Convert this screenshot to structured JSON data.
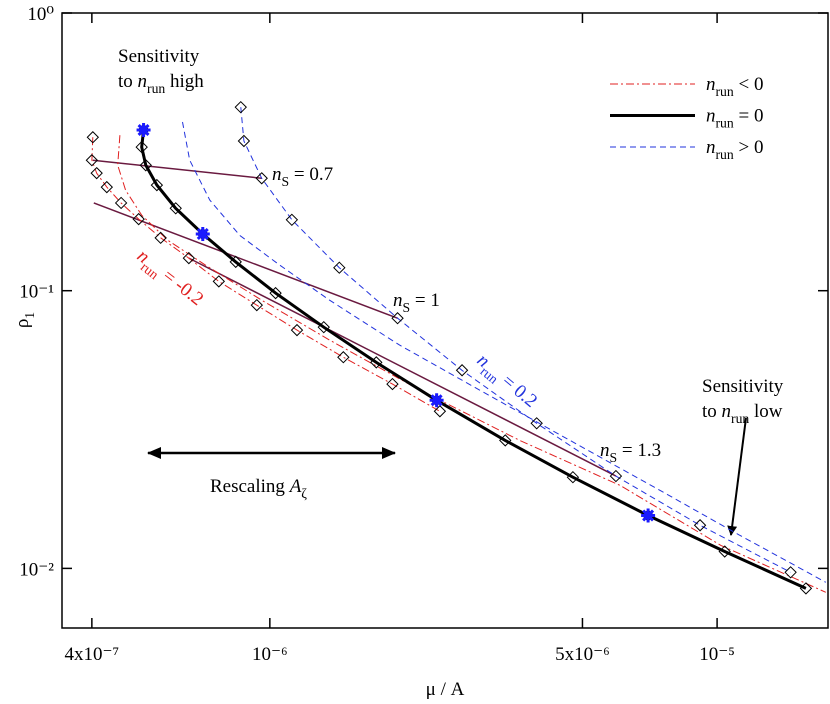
{
  "chart_data": {
    "type": "line",
    "xlabel": "μ / A",
    "ylabel": "ρ1",
    "log_x": true,
    "log_y": true,
    "xlim": [
      3.43e-07,
      1.77e-05
    ],
    "ylim": [
      0.0061,
      1
    ],
    "xticks": [
      {
        "value": 4e-07,
        "label": "4x10⁻⁷"
      },
      {
        "value": 1e-06,
        "label": "10⁻⁶"
      },
      {
        "value": 5e-06,
        "label": "5x10⁻⁶"
      },
      {
        "value": 1e-05,
        "label": "10⁻⁵"
      }
    ],
    "yticks": [
      {
        "value": 1,
        "label": "10⁰"
      },
      {
        "value": 0.1,
        "label": "10⁻¹"
      },
      {
        "value": 0.01,
        "label": "10⁻²"
      }
    ],
    "series": [
      {
        "name": "nrun < 0",
        "color": "#e02020",
        "dash": "dashdot",
        "width": 1,
        "lines": [
          {
            "markers": false,
            "x": [
              4.62e-07,
              4.57e-07,
              4.76e-07,
              5.17e-07,
              5.91e-07,
              7.16e-07,
              9.59e-07,
              1.36e-06,
              2.17e-06,
              3.62e-06,
              6.07e-06,
              1.02e-05,
              1.75e-05
            ],
            "values": [
              0.363,
              0.283,
              0.23,
              0.187,
              0.152,
              0.124,
              0.0924,
              0.0664,
              0.0438,
              0.0289,
              0.0199,
              0.0121,
              0.0082
            ]
          },
          {
            "markers": true,
            "x": [
              4.02e-07,
              4e-07,
              4.1e-07,
              4.32e-07,
              4.65e-07,
              5.09e-07,
              5.7e-07,
              6.59e-07,
              7.69e-07,
              9.35e-07,
              1.15e-06,
              1.46e-06,
              1.88e-06,
              2.4e-06
            ],
            "values": [
              0.357,
              0.295,
              0.265,
              0.236,
              0.207,
              0.181,
              0.155,
              0.131,
              0.108,
              0.0887,
              0.0721,
              0.0576,
              0.0461,
              0.0368
            ]
          }
        ]
      },
      {
        "name": "nrun = 0",
        "color": "#000000",
        "dash": "solid",
        "width": 3,
        "lines": [
          {
            "markers": true,
            "x": [
              5.22e-07,
              5.17e-07,
              5.28e-07,
              5.59e-07,
              6.16e-07,
              7.08e-07,
              8.39e-07,
              1.03e-06,
              1.32e-06,
              1.73e-06,
              2.36e-06,
              3.36e-06,
              4.76e-06,
              7.01e-06,
              1.04e-05,
              1.58e-05
            ],
            "values": [
              0.379,
              0.329,
              0.283,
              0.24,
              0.198,
              0.16,
              0.127,
              0.098,
              0.0739,
              0.0552,
              0.0403,
              0.0289,
              0.0213,
              0.0155,
              0.0115,
              0.00847
            ]
          }
        ]
      },
      {
        "name": "nrun > 0",
        "color": "#2233dd",
        "dash": "dashed",
        "width": 1,
        "lines": [
          {
            "markers": false,
            "x": [
              6.38e-07,
              6.62e-07,
              7.34e-07,
              8.57e-07,
              1.05e-06,
              1.36e-06,
              1.95e-06,
              2.95e-06,
              4.69e-06,
              7.45e-06,
              1.12e-05,
              1.75e-05
            ],
            "values": [
              0.405,
              0.295,
              0.212,
              0.158,
              0.124,
              0.0924,
              0.0637,
              0.0438,
              0.0289,
              0.0191,
              0.0132,
              0.00891
            ]
          },
          {
            "markers": true,
            "x": [
              8.61e-07,
              8.75e-07,
              9.59e-07,
              1.12e-06,
              1.43e-06,
              1.93e-06,
              2.69e-06,
              3.95e-06,
              5.94e-06,
              9.16e-06,
              1.46e-05
            ],
            "values": [
              0.458,
              0.346,
              0.254,
              0.18,
              0.121,
              0.0796,
              0.0517,
              0.0333,
              0.0215,
              0.0143,
              0.00968
            ]
          }
        ]
      }
    ],
    "stars": {
      "color": "#1a1aff",
      "x": [
        5.22e-07,
        7.08e-07,
        2.36e-06,
        7.01e-06
      ],
      "values": [
        0.379,
        0.16,
        0.0403,
        0.0155
      ]
    },
    "connectors": {
      "color": "#6a1a40",
      "lines": [
        {
          "x": [
            4.02e-07,
            9.59e-07
          ],
          "values": [
            0.295,
            0.254
          ]
        },
        {
          "x": [
            4.04e-07,
            1.93e-06
          ],
          "values": [
            0.207,
            0.0796
          ]
        },
        {
          "x": [
            6.59e-07,
            5.94e-06
          ],
          "values": [
            0.131,
            0.0215
          ]
        }
      ]
    },
    "annotations": [
      "Sensitivity",
      "to nrun high",
      "nS = 0.7",
      "nS = 1",
      "nS = 1.3",
      "nrun = -0.2",
      "nrun = 0.2",
      "Rescaling Aζ",
      "Sensitivity",
      "to nrun low"
    ]
  }
}
